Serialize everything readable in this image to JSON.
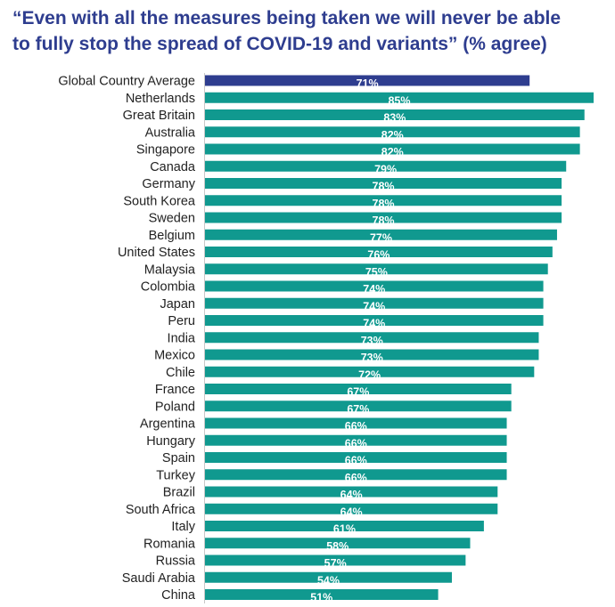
{
  "title": {
    "line1": "“Even with all the measures being taken we will never be able",
    "line2": "to fully stop the spread of COVID-19 and variants” (% agree)"
  },
  "colors": {
    "highlight": "#2e3d8f",
    "bar": "#10998f"
  },
  "chart_data": {
    "type": "bar",
    "orientation": "horizontal",
    "title": "“Even with all the measures being taken we will never be able to fully stop the spread of COVID-19 and variants” (% agree)",
    "categories": [
      "Global Country Average",
      "Netherlands",
      "Great Britain",
      "Australia",
      "Singapore",
      "Canada",
      "Germany",
      "South Korea",
      "Sweden",
      "Belgium",
      "United States",
      "Malaysia",
      "Colombia",
      "Japan",
      "Peru",
      "India",
      "Mexico",
      "Chile",
      "France",
      "Poland",
      "Argentina",
      "Hungary",
      "Spain",
      "Turkey",
      "Brazil",
      "South Africa",
      "Italy",
      "Romania",
      "Russia",
      "Saudi Arabia",
      "China"
    ],
    "values": [
      71,
      85,
      83,
      82,
      82,
      79,
      78,
      78,
      78,
      77,
      76,
      75,
      74,
      74,
      74,
      73,
      73,
      72,
      67,
      67,
      66,
      66,
      66,
      66,
      64,
      64,
      61,
      58,
      57,
      54,
      51
    ],
    "labels": [
      "71%",
      "85%",
      "83%",
      "82%",
      "82%",
      "79%",
      "78%",
      "78%",
      "78%",
      "77%",
      "76%",
      "75%",
      "74%",
      "74%",
      "74%",
      "73%",
      "73%",
      "72%",
      "67%",
      "67%",
      "66%",
      "66%",
      "66%",
      "66%",
      "64%",
      "64%",
      "61%",
      "58%",
      "57%",
      "54%",
      "51%"
    ],
    "highlight_category": "Global Country Average",
    "xlim": [
      0,
      85
    ],
    "xlabel": "",
    "ylabel": "",
    "grid": false,
    "legend": "none"
  }
}
